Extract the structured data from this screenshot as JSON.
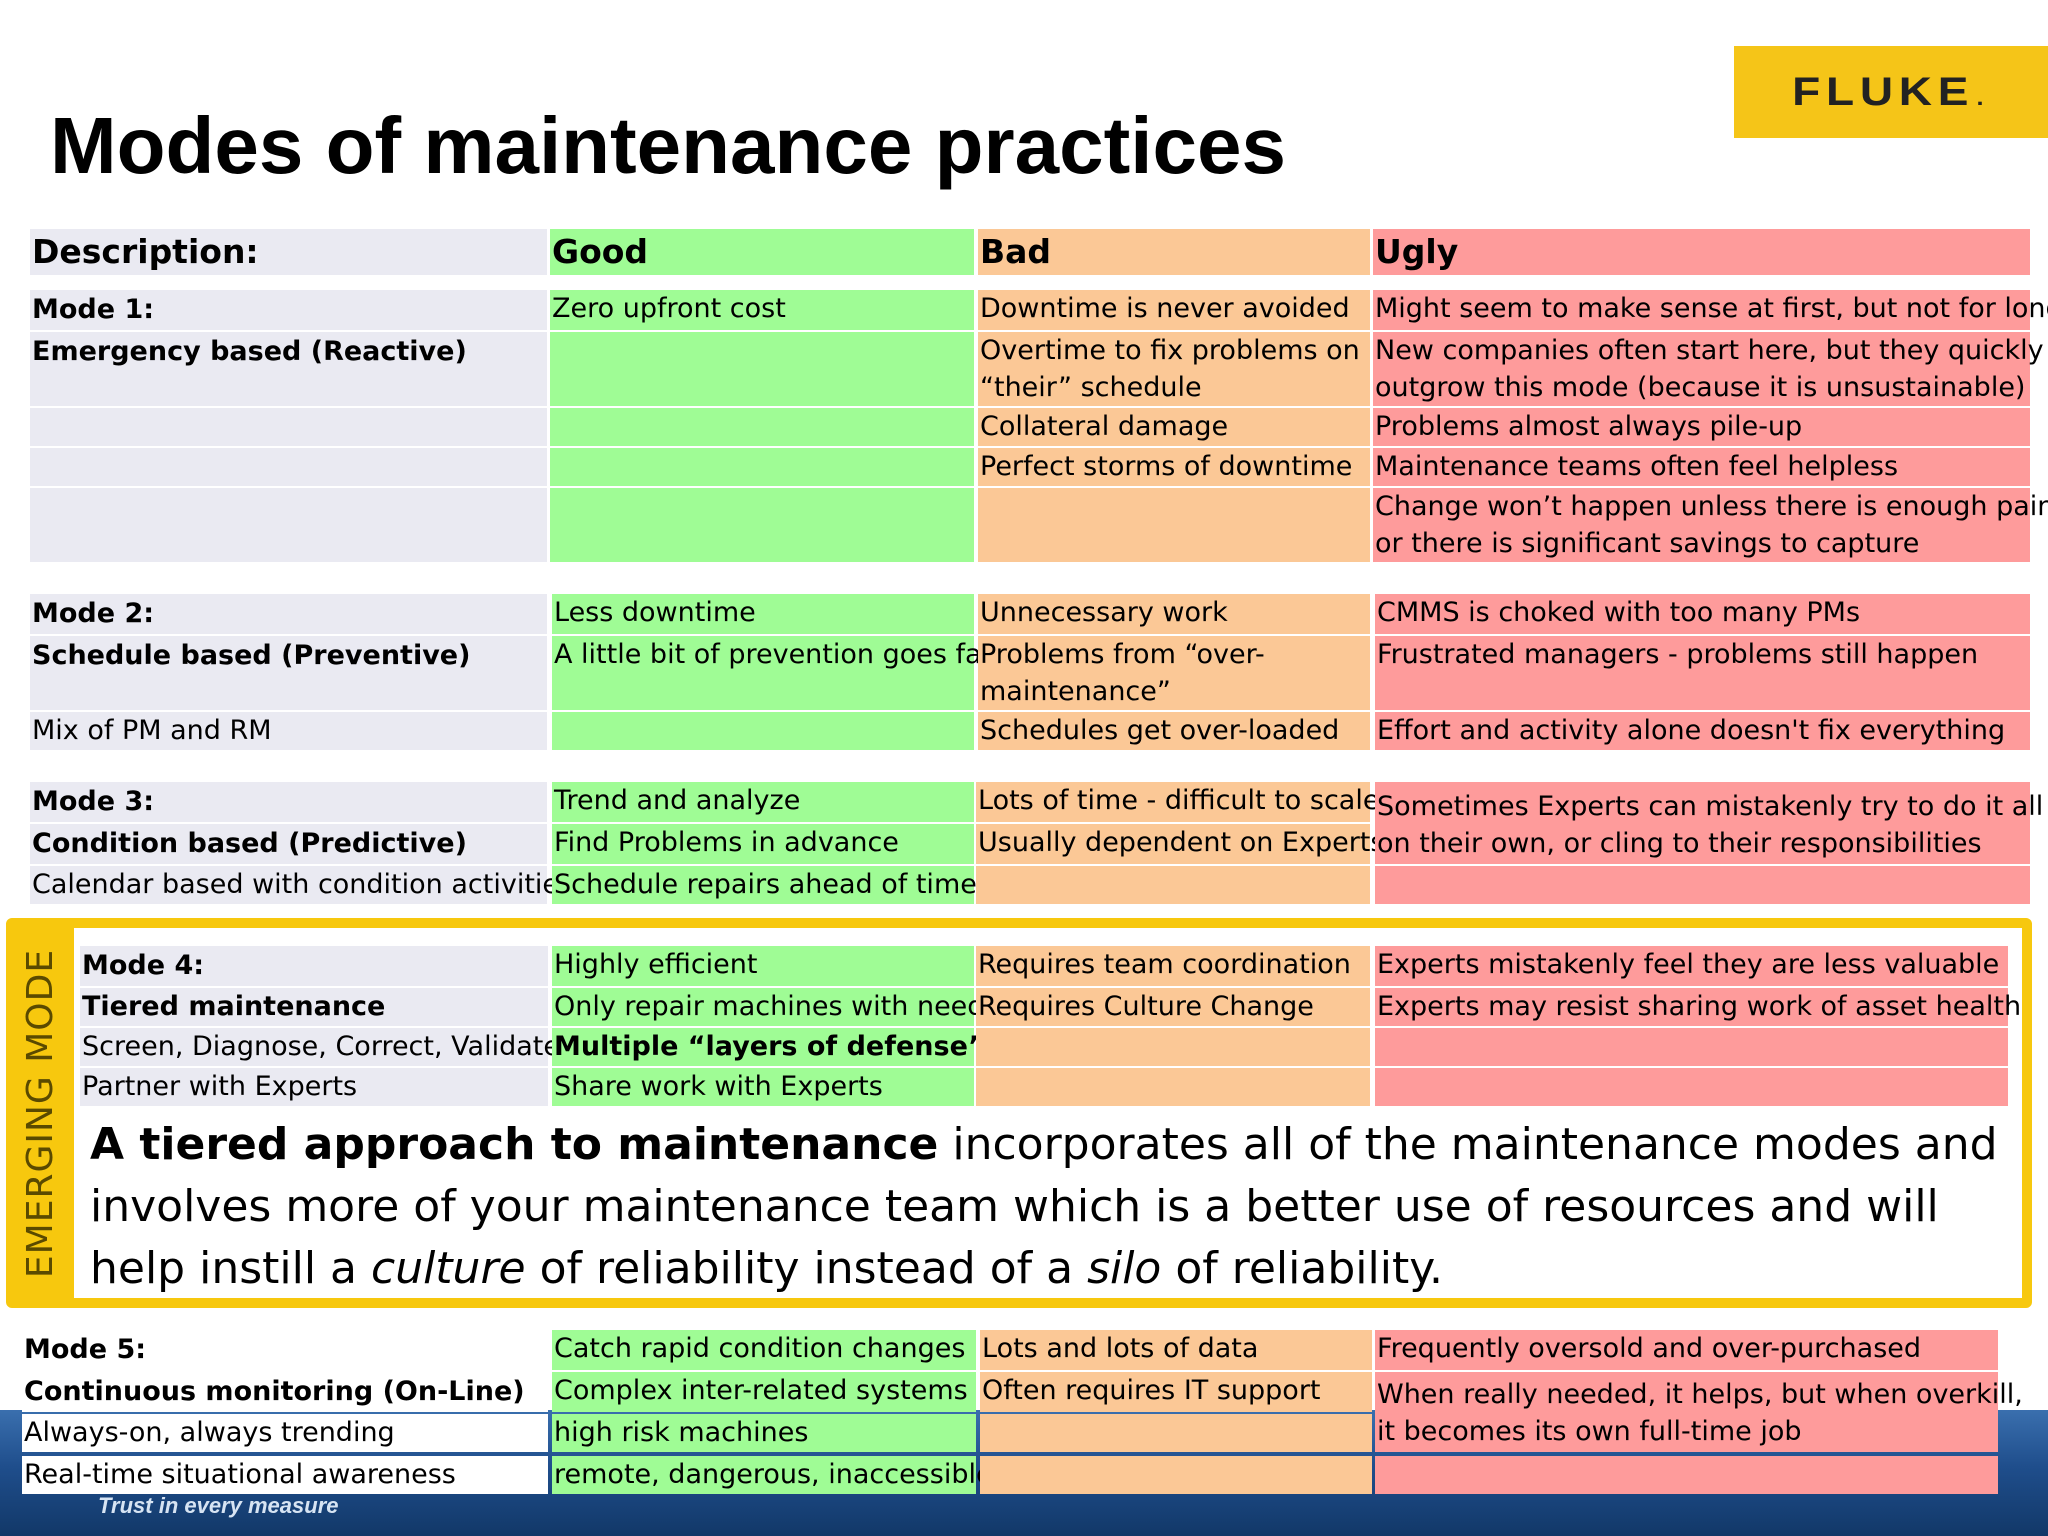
{
  "title": "Modes of maintenance practices",
  "logo": "FLUKE",
  "footer_tagline": "Trust in every measure",
  "header": {
    "description": "Description:",
    "good": "Good",
    "bad": "Bad",
    "ugly": "Ugly"
  },
  "mode1": {
    "desc": [
      "Mode 1:",
      "Emergency based (Reactive)",
      "",
      "",
      ""
    ],
    "good": [
      "Zero upfront cost",
      "",
      "",
      "",
      ""
    ],
    "bad": [
      "Downtime is never avoided",
      "Overtime to fix problems on",
      "“their” schedule",
      "Collateral damage",
      "Perfect storms of downtime"
    ],
    "ugly": [
      "Might seem to make sense at first, but not for long",
      "New companies often start here, but they quickly",
      "outgrow this mode (because it is unsustainable)",
      "Problems almost always pile-up",
      "Maintenance teams often feel helpless",
      "Change won’t happen unless there is  enough pain",
      "or there is significant savings to capture"
    ]
  },
  "mode2": {
    "desc": [
      "Mode 2:",
      "Schedule based (Preventive)",
      "Mix of PM and RM"
    ],
    "good": [
      "Less downtime",
      "A little bit of prevention goes far",
      ""
    ],
    "bad": [
      "Unnecessary work",
      "Problems from “over-",
      "maintenance”",
      "Schedules get over-loaded"
    ],
    "ugly": [
      "CMMS is choked with too many PMs",
      "Frustrated managers - problems still happen",
      "Effort and activity alone doesn't fix everything"
    ]
  },
  "mode3": {
    "desc": [
      "Mode 3:",
      "Condition based (Predictive)",
      "Calendar based with condition activities"
    ],
    "good": [
      "Trend and analyze",
      "Find Problems in advance",
      "Schedule repairs ahead of time"
    ],
    "bad": [
      "Lots of time - difficult to scale",
      "Usually dependent on Experts",
      ""
    ],
    "ugly": [
      " Sometimes Experts can mistakenly try to do it all",
      "on their own, or cling to their responsibilities"
    ]
  },
  "emerging_label": "EMERGING MODE",
  "mode4": {
    "desc": [
      "Mode 4:",
      "Tiered maintenance",
      "Screen, Diagnose, Correct, Validate",
      "Partner with Experts"
    ],
    "good": [
      "Highly efficient",
      "Only repair machines with need",
      "Multiple “layers of defense”",
      " Share work with Experts"
    ],
    "bad": [
      "Requires team coordination",
      "Requires Culture Change",
      "",
      ""
    ],
    "ugly": [
      "Experts mistakenly feel they are less valuable",
      "Experts may resist sharing work of asset health",
      "",
      ""
    ]
  },
  "summary": {
    "bold_lead": "A tiered approach to maintenance",
    "part1": " incorporates all of the maintenance modes and involves more of your maintenance team which is a better use of resources and will help instill a ",
    "italic1": "culture",
    "part2": " of reliability instead of a ",
    "italic2": "silo",
    "part3": " of reliability."
  },
  "mode5": {
    "desc": [
      "Mode 5:",
      "Continuous monitoring (On-Line)",
      "Always-on, always trending",
      "Real-time situational awareness"
    ],
    "good": [
      "Catch rapid condition changes",
      "Complex inter-related systems",
      "high risk machines",
      "remote, dangerous, inaccessible"
    ],
    "bad": [
      "Lots and lots of data",
      "Often requires IT support",
      "",
      ""
    ],
    "ugly": [
      "Frequently oversold and over-purchased",
      "When really needed, it helps, but when overkill,",
      "it becomes its own full-time job",
      ""
    ]
  }
}
